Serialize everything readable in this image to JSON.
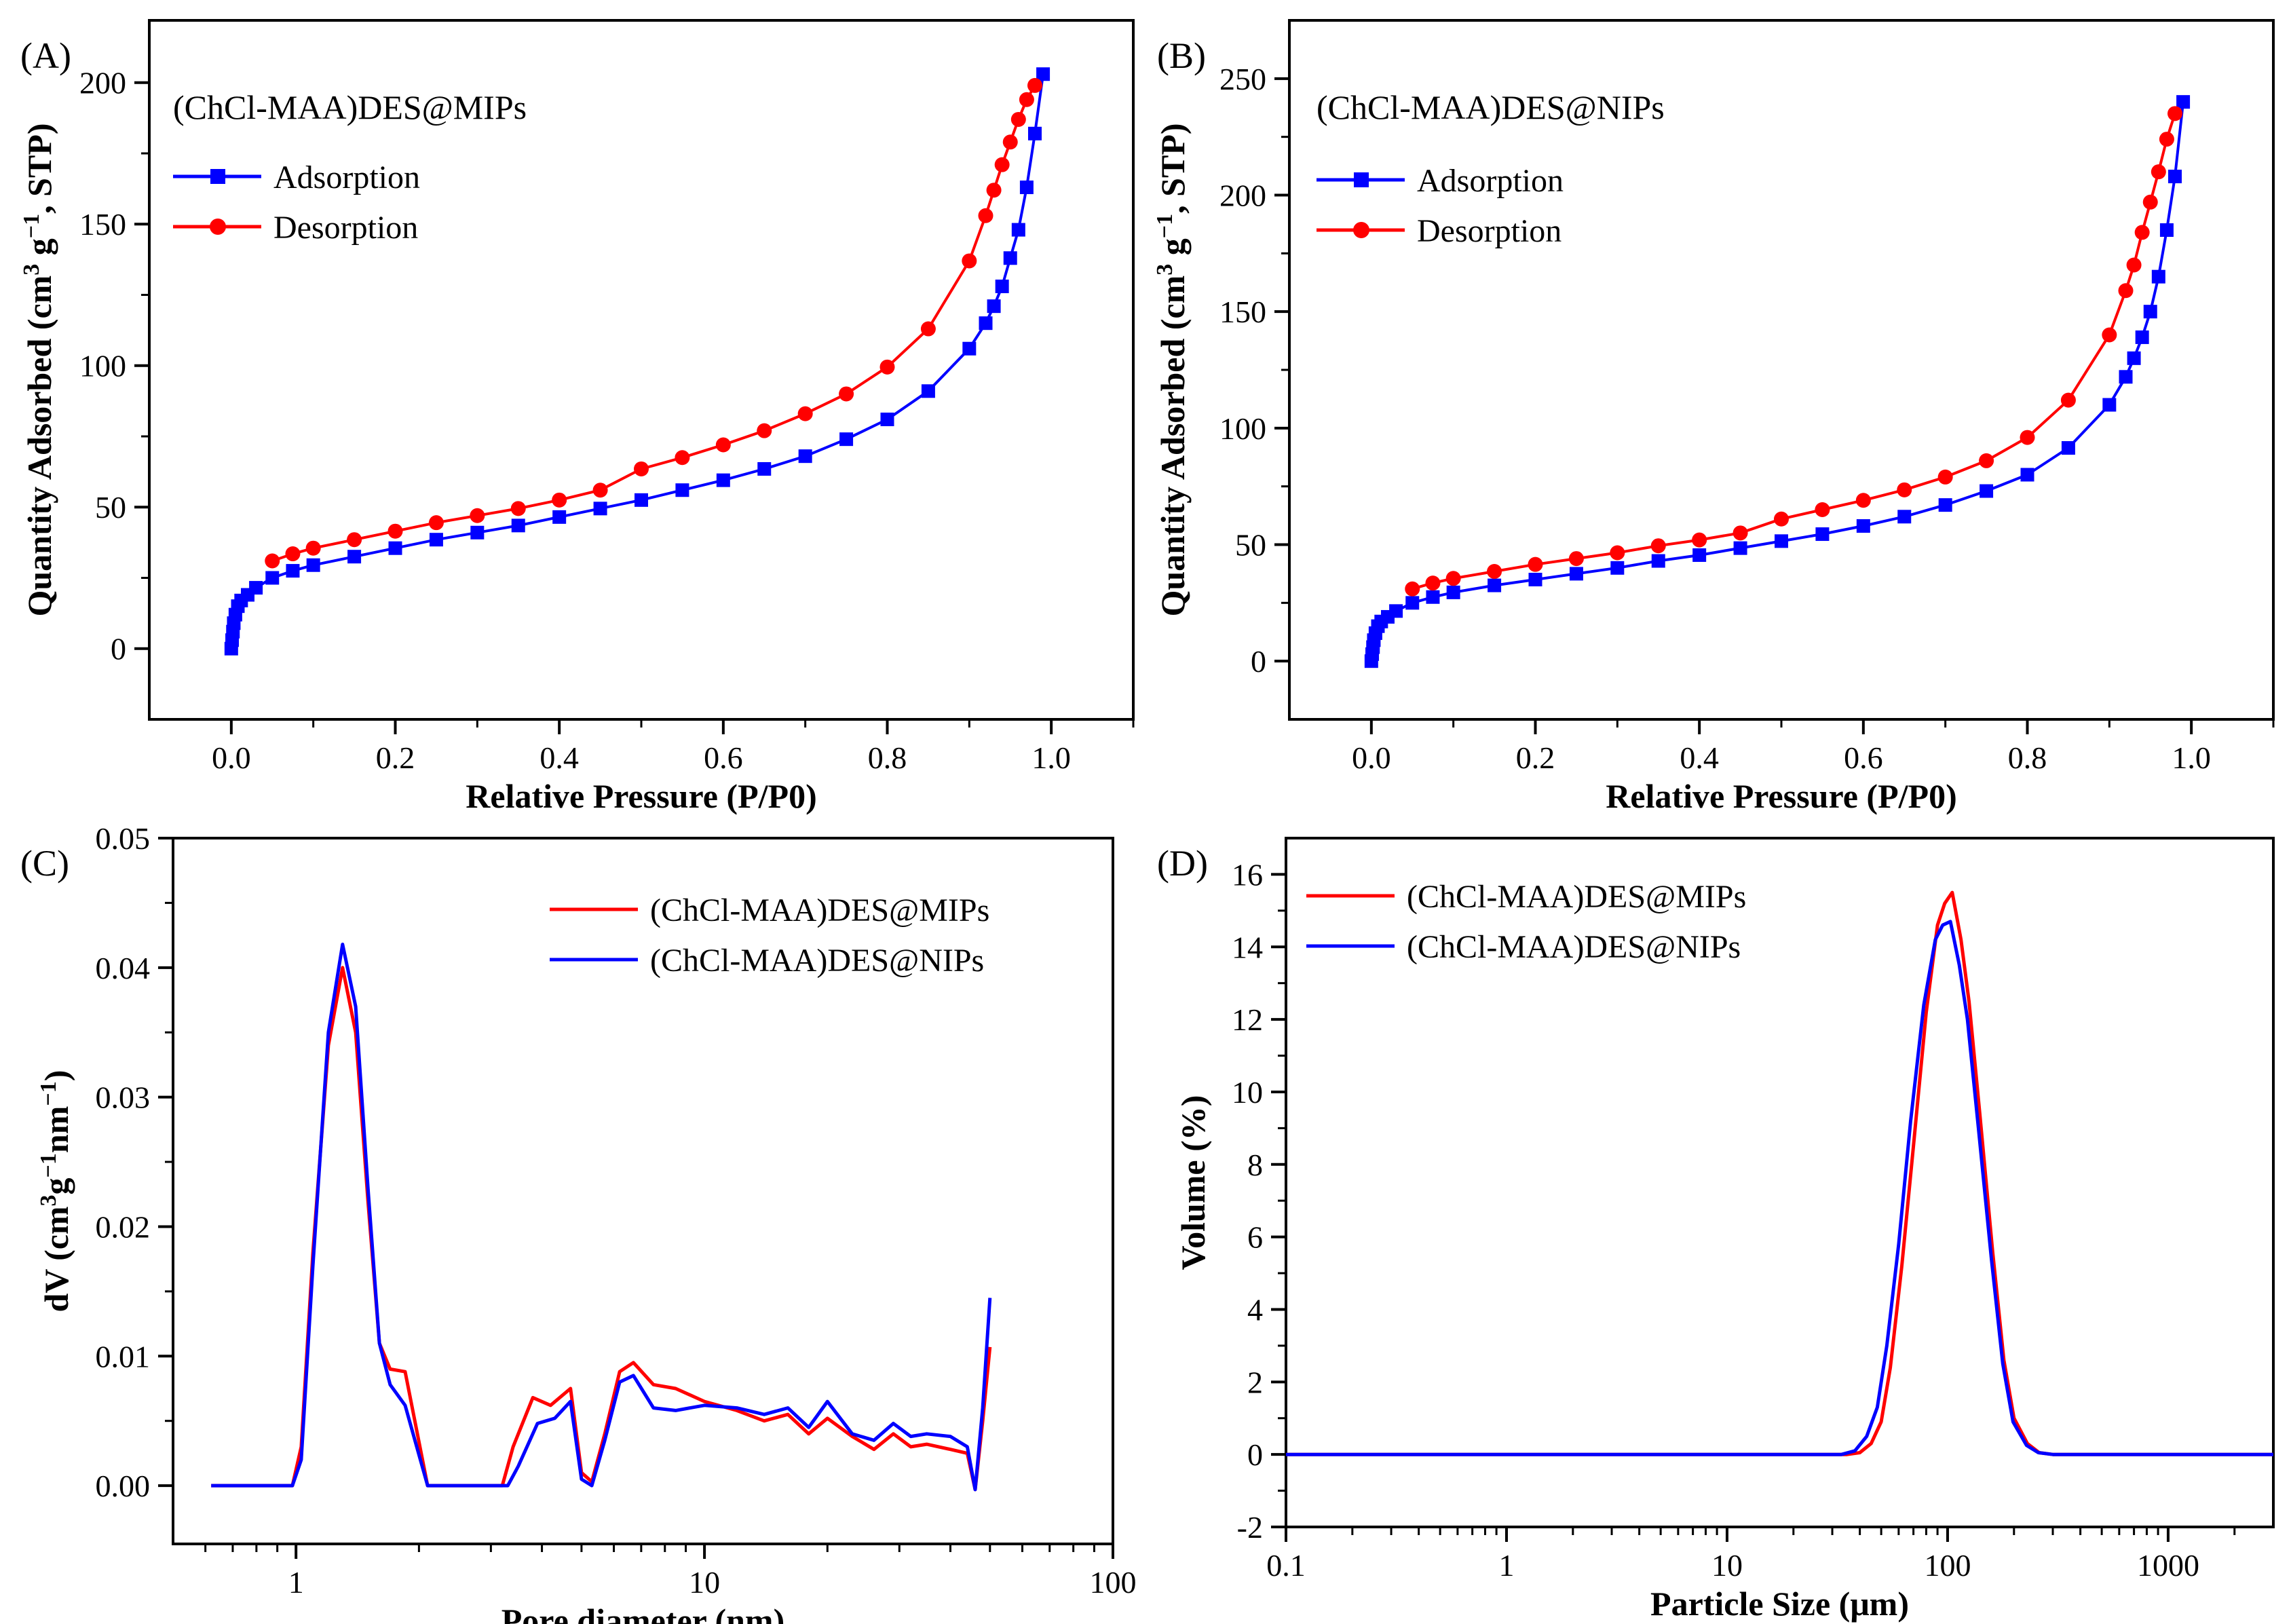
{
  "chart_data": [
    {
      "id": "A",
      "panel_label": "(A)",
      "type": "line",
      "title": "(ChCl-MAA)DES@MIPs",
      "xlabel": "Relative Pressure (P/P0)",
      "ylabel_parts": [
        "Quantity Adsorbed (cm",
        "3",
        " g",
        "−1",
        ", STP)"
      ],
      "xlim": [
        -0.1,
        1.1
      ],
      "ylim": [
        -25,
        222
      ],
      "xticks": [
        0.0,
        0.2,
        0.4,
        0.6,
        0.8,
        1.0
      ],
      "xtick_labels": [
        "0.0",
        "0.2",
        "0.4",
        "0.6",
        "0.8",
        "1.0"
      ],
      "yticks": [
        0,
        50,
        100,
        150,
        200
      ],
      "ytick_labels": [
        "0",
        "50",
        "100",
        "150",
        "200"
      ],
      "legend_position": "upper-left",
      "series": [
        {
          "name": "Adsorption",
          "color": "#0000ff",
          "marker": "square",
          "x": [
            0.0,
            0.001,
            0.002,
            0.003,
            0.005,
            0.008,
            0.012,
            0.02,
            0.03,
            0.05,
            0.075,
            0.1,
            0.15,
            0.2,
            0.25,
            0.3,
            0.35,
            0.4,
            0.45,
            0.5,
            0.55,
            0.6,
            0.65,
            0.7,
            0.75,
            0.8,
            0.85,
            0.9,
            0.92,
            0.93,
            0.94,
            0.95,
            0.96,
            0.97,
            0.98,
            0.99
          ],
          "y": [
            0,
            3,
            6,
            9,
            12,
            15,
            17,
            19,
            21.5,
            25,
            27.5,
            29.5,
            32.5,
            35.5,
            38.5,
            41,
            43.5,
            46.5,
            49.5,
            52.5,
            56,
            59.5,
            63.5,
            68,
            74,
            81,
            91,
            106,
            115,
            121,
            128,
            138,
            148,
            163,
            182,
            203
          ]
        },
        {
          "name": "Desorption",
          "color": "#ff0000",
          "marker": "circle",
          "x": [
            0.05,
            0.075,
            0.1,
            0.15,
            0.2,
            0.25,
            0.3,
            0.35,
            0.4,
            0.45,
            0.5,
            0.55,
            0.6,
            0.65,
            0.7,
            0.75,
            0.8,
            0.85,
            0.9,
            0.92,
            0.93,
            0.94,
            0.95,
            0.96,
            0.97,
            0.98
          ],
          "y": [
            31,
            33.5,
            35.5,
            38.5,
            41.5,
            44.5,
            47,
            49.5,
            52.5,
            56,
            63.5,
            67.5,
            72,
            77,
            83,
            90,
            99.5,
            113,
            137,
            153,
            162,
            171,
            179,
            187,
            194,
            199
          ]
        }
      ]
    },
    {
      "id": "B",
      "panel_label": "(B)",
      "type": "line",
      "title": "(ChCl-MAA)DES@NIPs",
      "xlabel": "Relative Pressure (P/P0)",
      "ylabel_parts": [
        "Quantity Adsorbed (cm",
        "3",
        " g",
        "−1",
        ", STP)"
      ],
      "xlim": [
        -0.1,
        1.1
      ],
      "ylim": [
        -25,
        275
      ],
      "xticks": [
        0.0,
        0.2,
        0.4,
        0.6,
        0.8,
        1.0
      ],
      "xtick_labels": [
        "0.0",
        "0.2",
        "0.4",
        "0.6",
        "0.8",
        "1.0"
      ],
      "yticks": [
        0,
        50,
        100,
        150,
        200,
        250
      ],
      "ytick_labels": [
        "0",
        "50",
        "100",
        "150",
        "200",
        "250"
      ],
      "legend_position": "upper-left",
      "series": [
        {
          "name": "Adsorption",
          "color": "#0000ff",
          "marker": "square",
          "x": [
            0.0,
            0.001,
            0.002,
            0.003,
            0.005,
            0.008,
            0.012,
            0.02,
            0.03,
            0.05,
            0.075,
            0.1,
            0.15,
            0.2,
            0.25,
            0.3,
            0.35,
            0.4,
            0.45,
            0.5,
            0.55,
            0.6,
            0.65,
            0.7,
            0.75,
            0.8,
            0.85,
            0.9,
            0.92,
            0.93,
            0.94,
            0.95,
            0.96,
            0.97,
            0.98,
            0.99
          ],
          "y": [
            0,
            3,
            6,
            9,
            12,
            15,
            17,
            19,
            21.5,
            25,
            27.5,
            29.5,
            32.5,
            35,
            37.5,
            40,
            43,
            45.5,
            48.5,
            51.5,
            54.5,
            58,
            62,
            67,
            73,
            80,
            91.5,
            110,
            122,
            130,
            139,
            150,
            165,
            185,
            208,
            240
          ]
        },
        {
          "name": "Desorption",
          "color": "#ff0000",
          "marker": "circle",
          "x": [
            0.05,
            0.075,
            0.1,
            0.15,
            0.2,
            0.25,
            0.3,
            0.35,
            0.4,
            0.45,
            0.5,
            0.55,
            0.6,
            0.65,
            0.7,
            0.75,
            0.8,
            0.85,
            0.9,
            0.92,
            0.93,
            0.94,
            0.95,
            0.96,
            0.97,
            0.98
          ],
          "y": [
            31,
            33.5,
            35.5,
            38.5,
            41.5,
            44,
            46.5,
            49.5,
            52,
            55,
            61,
            65,
            69,
            73.5,
            79,
            86,
            96,
            112,
            140,
            159,
            170,
            184,
            197,
            210,
            224,
            235
          ]
        }
      ]
    },
    {
      "id": "C",
      "panel_label": "(C)",
      "type": "line",
      "xscale": "log",
      "xlabel": "Pore diameter (nm)",
      "ylabel_parts": [
        "dV (cm",
        "3",
        "g",
        "−1",
        "nm",
        "−1",
        ")"
      ],
      "xlim": [
        0.5,
        100
      ],
      "ylim": [
        -0.0045,
        0.05
      ],
      "xticks": [
        1,
        10,
        100
      ],
      "xtick_labels": [
        "1",
        "10",
        "100"
      ],
      "yticks": [
        0.0,
        0.01,
        0.02,
        0.03,
        0.04,
        0.05
      ],
      "ytick_labels": [
        "0.00",
        "0.01",
        "0.02",
        "0.03",
        "0.04",
        "0.05"
      ],
      "legend_position": "upper-right",
      "series": [
        {
          "name": "(ChCl-MAA)DES@MIPs",
          "color": "#ff0000",
          "x": [
            0.62,
            0.98,
            1.03,
            1.1,
            1.2,
            1.3,
            1.4,
            1.5,
            1.6,
            1.7,
            1.85,
            2.1,
            2.5,
            3.2,
            3.4,
            3.8,
            4.2,
            4.7,
            5.0,
            5.3,
            5.7,
            6.2,
            6.7,
            7.5,
            8.5,
            10,
            12,
            14,
            16,
            18,
            20,
            23,
            26,
            29,
            32,
            35,
            40,
            44,
            46,
            48,
            50
          ],
          "y": [
            0.0,
            0.0,
            0.003,
            0.018,
            0.034,
            0.04,
            0.035,
            0.022,
            0.011,
            0.009,
            0.0088,
            0.0,
            0.0,
            0.0,
            0.003,
            0.0068,
            0.0062,
            0.0075,
            0.001,
            0.0003,
            0.004,
            0.0088,
            0.0095,
            0.0078,
            0.0075,
            0.0065,
            0.0058,
            0.005,
            0.0055,
            0.004,
            0.0052,
            0.0038,
            0.0028,
            0.004,
            0.003,
            0.0032,
            0.0028,
            0.0025,
            -0.0003,
            0.005,
            0.0107
          ]
        },
        {
          "name": "(ChCl-MAA)DES@NIPs",
          "color": "#0000ff",
          "x": [
            0.62,
            0.98,
            1.03,
            1.1,
            1.2,
            1.3,
            1.4,
            1.5,
            1.6,
            1.7,
            1.85,
            2.1,
            2.5,
            3.3,
            3.5,
            3.9,
            4.3,
            4.7,
            5.0,
            5.3,
            5.7,
            6.2,
            6.7,
            7.5,
            8.5,
            10,
            12,
            14,
            16,
            18,
            20,
            23,
            26,
            29,
            32,
            35,
            40,
            44,
            46,
            48,
            50
          ],
          "y": [
            0.0,
            0.0,
            0.002,
            0.017,
            0.035,
            0.0418,
            0.037,
            0.023,
            0.011,
            0.0078,
            0.0062,
            0.0,
            0.0,
            0.0,
            0.0015,
            0.0048,
            0.0052,
            0.0065,
            0.0005,
            0.0,
            0.0035,
            0.008,
            0.0085,
            0.006,
            0.0058,
            0.0062,
            0.006,
            0.0055,
            0.006,
            0.0045,
            0.0065,
            0.004,
            0.0035,
            0.0048,
            0.0038,
            0.004,
            0.0038,
            0.003,
            -0.0003,
            0.006,
            0.0145
          ]
        }
      ]
    },
    {
      "id": "D",
      "panel_label": "(D)",
      "type": "line",
      "xscale": "log",
      "xlabel": "Particle Size (μm)",
      "ylabel_parts": [
        "Volume (%)"
      ],
      "xlim": [
        0.1,
        3000
      ],
      "ylim": [
        -2,
        17
      ],
      "xticks": [
        0.1,
        1,
        10,
        100,
        1000
      ],
      "xtick_labels": [
        "0.1",
        "1",
        "10",
        "100",
        "1000"
      ],
      "yticks": [
        -2,
        0,
        2,
        4,
        6,
        8,
        10,
        12,
        14,
        16
      ],
      "ytick_labels": [
        "-2",
        "0",
        "2",
        "4",
        "6",
        "8",
        "10",
        "12",
        "14",
        "16"
      ],
      "legend_position": "upper-left",
      "series": [
        {
          "name": "(ChCl-MAA)DES@MIPs",
          "color": "#ff0000",
          "x": [
            0.1,
            35,
            40,
            45,
            50,
            55,
            62,
            70,
            80,
            90,
            97,
            105,
            115,
            125,
            140,
            160,
            180,
            200,
            230,
            260,
            300,
            3000
          ],
          "y": [
            0,
            0,
            0.05,
            0.3,
            0.9,
            2.4,
            5.2,
            8.5,
            12.2,
            14.6,
            15.2,
            15.5,
            14.2,
            12.5,
            9.4,
            5.6,
            2.6,
            1.0,
            0.3,
            0.05,
            0,
            0
          ]
        },
        {
          "name": "(ChCl-MAA)DES@NIPs",
          "color": "#0000ff",
          "x": [
            0.1,
            33,
            38,
            43,
            48,
            53,
            60,
            68,
            78,
            88,
            95,
            103,
            113,
            123,
            138,
            158,
            178,
            198,
            228,
            258,
            300,
            3000
          ],
          "y": [
            0,
            0,
            0.1,
            0.5,
            1.3,
            3.0,
            5.8,
            9.2,
            12.4,
            14.2,
            14.6,
            14.7,
            13.5,
            12.0,
            9.0,
            5.4,
            2.5,
            0.9,
            0.25,
            0.05,
            0,
            0
          ]
        }
      ]
    }
  ]
}
